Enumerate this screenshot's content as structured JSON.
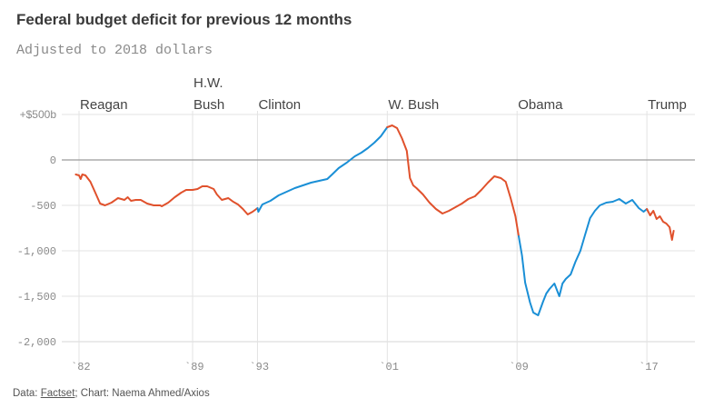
{
  "header": {
    "title": "Federal budget deficit for previous 12 months",
    "subtitle": "Adjusted to 2018 dollars"
  },
  "footer": {
    "data_prefix": "Data: ",
    "data_link": "Factset",
    "credit": "; Chart: Naema Ahmed/Axios"
  },
  "colors": {
    "republican": "#e0512c",
    "democrat": "#1a8fd6",
    "zero_line": "#9a9a9a",
    "grid": "#e3e3e3"
  },
  "chart_data": {
    "type": "line",
    "title": "Federal budget deficit for previous 12 months",
    "subtitle": "Adjusted to 2018 dollars",
    "xlabel": "",
    "ylabel": "",
    "units": "billions of 2018 dollars",
    "xlim": [
      1981.8,
      2020.7
    ],
    "ylim": [
      -2200,
      530
    ],
    "grid": true,
    "legend": "none",
    "y_ticks": [
      {
        "value": 500,
        "label": "+$500b"
      },
      {
        "value": 0,
        "label": "0"
      },
      {
        "value": -500,
        "label": "-500"
      },
      {
        "value": -1000,
        "label": "-1,000"
      },
      {
        "value": -1500,
        "label": "-1,500"
      },
      {
        "value": -2000,
        "label": "-2,000"
      }
    ],
    "x_ticks": [
      {
        "value": 1982,
        "label": "`82"
      },
      {
        "value": 1989,
        "label": "`89"
      },
      {
        "value": 1993,
        "label": "`93"
      },
      {
        "value": 2001,
        "label": "`01"
      },
      {
        "value": 2009,
        "label": "`09"
      },
      {
        "value": 2017,
        "label": "`17"
      }
    ],
    "presidents": [
      {
        "name": "Reagan",
        "start": 1982,
        "party": "republican",
        "lines": [
          "Reagan"
        ]
      },
      {
        "name": "H.W. Bush",
        "start": 1989,
        "party": "republican",
        "lines": [
          "H.W.",
          "Bush"
        ]
      },
      {
        "name": "Clinton",
        "start": 1993,
        "party": "democrat",
        "lines": [
          "Clinton"
        ]
      },
      {
        "name": "W. Bush",
        "start": 2001,
        "party": "republican",
        "lines": [
          "W. Bush"
        ]
      },
      {
        "name": "Obama",
        "start": 2009,
        "party": "democrat",
        "lines": [
          "Obama"
        ]
      },
      {
        "name": "Trump",
        "start": 2017,
        "party": "republican",
        "lines": [
          "Trump"
        ]
      }
    ],
    "series": [
      {
        "name": "Reagan / H.W. Bush",
        "party": "republican",
        "x": [
          1981.8,
          1982.0,
          1982.1,
          1982.2,
          1982.4,
          1982.7,
          1983.0,
          1983.3,
          1983.6,
          1984.0,
          1984.4,
          1984.8,
          1985.0,
          1985.2,
          1985.5,
          1985.8,
          1986.2,
          1986.6,
          1987.0,
          1987.1,
          1987.5,
          1987.9,
          1988.3,
          1988.6,
          1989.0,
          1989.3,
          1989.6,
          1989.9,
          1990.3,
          1990.5,
          1990.8,
          1991.2,
          1991.5,
          1991.8,
          1992.1,
          1992.4,
          1992.7,
          1993.0
        ],
        "values": [
          -160,
          -170,
          -210,
          -160,
          -170,
          -240,
          -360,
          -480,
          -500,
          -470,
          -420,
          -440,
          -410,
          -450,
          -440,
          -440,
          -480,
          -500,
          -500,
          -510,
          -470,
          -410,
          -360,
          -330,
          -330,
          -320,
          -290,
          -290,
          -320,
          -380,
          -440,
          -420,
          -460,
          -490,
          -540,
          -600,
          -570,
          -530
        ]
      },
      {
        "name": "Clinton",
        "party": "democrat",
        "x": [
          1993.0,
          1993.05,
          1993.3,
          1993.8,
          1994.3,
          1994.8,
          1995.3,
          1995.8,
          1996.3,
          1996.8,
          1997.3,
          1997.6,
          1998.0,
          1998.5,
          1999.0,
          1999.4,
          1999.8,
          2000.2,
          2000.6,
          2001.0
        ],
        "values": [
          -530,
          -570,
          -490,
          -450,
          -390,
          -350,
          -310,
          -280,
          -250,
          -230,
          -210,
          -160,
          -90,
          -30,
          40,
          80,
          130,
          190,
          260,
          360
        ]
      },
      {
        "name": "W. Bush",
        "party": "republican",
        "x": [
          2001.0,
          2001.3,
          2001.6,
          2001.9,
          2002.2,
          2002.4,
          2002.6,
          2002.8,
          2003.2,
          2003.6,
          2004.0,
          2004.4,
          2004.8,
          2005.2,
          2005.6,
          2006.0,
          2006.4,
          2006.8,
          2007.2,
          2007.6,
          2008.0,
          2008.3,
          2008.6,
          2008.9,
          2009.1
        ],
        "values": [
          360,
          380,
          350,
          240,
          100,
          -200,
          -280,
          -310,
          -380,
          -470,
          -540,
          -590,
          -560,
          -520,
          -480,
          -430,
          -400,
          -330,
          -250,
          -180,
          -200,
          -240,
          -420,
          -620,
          -840
        ]
      },
      {
        "name": "Obama",
        "party": "democrat",
        "x": [
          2009.1,
          2009.3,
          2009.5,
          2009.8,
          2010.0,
          2010.3,
          2010.6,
          2010.8,
          2011.0,
          2011.3,
          2011.6,
          2011.8,
          2012.0,
          2012.3,
          2012.6,
          2012.9,
          2013.2,
          2013.5,
          2013.8,
          2014.1,
          2014.5,
          2014.9,
          2015.3,
          2015.7,
          2016.1,
          2016.5,
          2016.8,
          2017.0
        ],
        "values": [
          -840,
          -1050,
          -1350,
          -1570,
          -1680,
          -1710,
          -1560,
          -1470,
          -1420,
          -1360,
          -1500,
          -1360,
          -1310,
          -1260,
          -1120,
          -1000,
          -820,
          -640,
          -560,
          -500,
          -470,
          -460,
          -430,
          -480,
          -440,
          -530,
          -570,
          -540
        ]
      },
      {
        "name": "Trump",
        "party": "republican",
        "x": [
          2017.0,
          2017.2,
          2017.4,
          2017.6,
          2017.8,
          2018.0,
          2018.2,
          2018.4,
          2018.55,
          2018.65
        ],
        "values": [
          -540,
          -610,
          -560,
          -650,
          -620,
          -680,
          -700,
          -740,
          -880,
          -780
        ]
      }
    ]
  }
}
